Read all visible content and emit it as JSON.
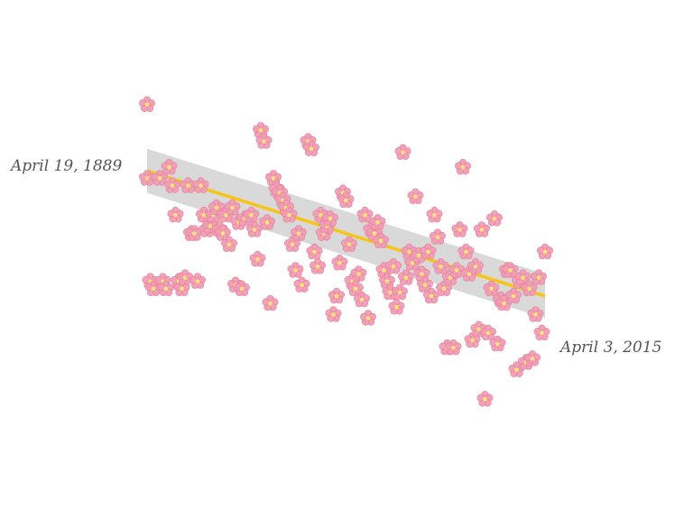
{
  "chart_data": {
    "type": "scatter",
    "title": "",
    "xlabel": "",
    "ylabel": "",
    "xlim": [
      1889,
      2015
    ],
    "ylim": [
      0,
      100
    ],
    "grid": false,
    "legend": "none",
    "marker": "cherry-blossom",
    "colors": {
      "petal": "#f29db4",
      "petal_stroke": "#e07f99",
      "center": "#ffe27a",
      "trend": "#f5c518",
      "band": "#cfcfcf"
    },
    "annotations": [
      {
        "text": "April 19, 1889",
        "x": 1889
      },
      {
        "text": "April 3, 2015",
        "x": 2015
      }
    ],
    "trend": {
      "start": 72,
      "end": 38,
      "band_halfwidth": 6
    },
    "points": [
      [
        1889,
        90
      ],
      [
        1889,
        70
      ],
      [
        1890,
        42
      ],
      [
        1891,
        40
      ],
      [
        1893,
        70
      ],
      [
        1894,
        42
      ],
      [
        1895,
        40
      ],
      [
        1896,
        73
      ],
      [
        1897,
        68
      ],
      [
        1898,
        60
      ],
      [
        1899,
        42
      ],
      [
        1900,
        40
      ],
      [
        1901,
        43
      ],
      [
        1902,
        68
      ],
      [
        1903,
        55
      ],
      [
        1904,
        55
      ],
      [
        1905,
        42
      ],
      [
        1906,
        68
      ],
      [
        1907,
        60
      ],
      [
        1908,
        56
      ],
      [
        1909,
        57
      ],
      [
        1910,
        60
      ],
      [
        1911,
        62
      ],
      [
        1912,
        56
      ],
      [
        1913,
        55
      ],
      [
        1914,
        60
      ],
      [
        1915,
        52
      ],
      [
        1916,
        62
      ],
      [
        1917,
        41
      ],
      [
        1918,
        58
      ],
      [
        1919,
        40
      ],
      [
        1920,
        59
      ],
      [
        1922,
        60
      ],
      [
        1923,
        56
      ],
      [
        1924,
        48
      ],
      [
        1925,
        83
      ],
      [
        1926,
        80
      ],
      [
        1927,
        58
      ],
      [
        1928,
        36
      ],
      [
        1929,
        70
      ],
      [
        1930,
        67
      ],
      [
        1931,
        66
      ],
      [
        1932,
        64
      ],
      [
        1933,
        62
      ],
      [
        1934,
        60
      ],
      [
        1935,
        52
      ],
      [
        1936,
        45
      ],
      [
        1937,
        55
      ],
      [
        1938,
        41
      ],
      [
        1940,
        80
      ],
      [
        1941,
        78
      ],
      [
        1942,
        50
      ],
      [
        1943,
        46
      ],
      [
        1944,
        60
      ],
      [
        1945,
        55
      ],
      [
        1946,
        57
      ],
      [
        1947,
        59
      ],
      [
        1948,
        33
      ],
      [
        1949,
        38
      ],
      [
        1950,
        47
      ],
      [
        1951,
        66
      ],
      [
        1952,
        64
      ],
      [
        1953,
        52
      ],
      [
        1954,
        42
      ],
      [
        1955,
        40
      ],
      [
        1956,
        44
      ],
      [
        1957,
        37
      ],
      [
        1958,
        60
      ],
      [
        1959,
        32
      ],
      [
        1960,
        56
      ],
      [
        1961,
        55
      ],
      [
        1962,
        58
      ],
      [
        1963,
        53
      ],
      [
        1964,
        45
      ],
      [
        1965,
        42
      ],
      [
        1966,
        39
      ],
      [
        1967,
        46
      ],
      [
        1968,
        35
      ],
      [
        1969,
        39
      ],
      [
        1970,
        77
      ],
      [
        1971,
        43
      ],
      [
        1972,
        50
      ],
      [
        1973,
        47
      ],
      [
        1974,
        65
      ],
      [
        1975,
        49
      ],
      [
        1976,
        44
      ],
      [
        1977,
        41
      ],
      [
        1978,
        50
      ],
      [
        1979,
        38
      ],
      [
        1980,
        60
      ],
      [
        1981,
        54
      ],
      [
        1982,
        46
      ],
      [
        1983,
        40
      ],
      [
        1984,
        24
      ],
      [
        1985,
        43
      ],
      [
        1986,
        24
      ],
      [
        1987,
        45
      ],
      [
        1988,
        56
      ],
      [
        1989,
        73
      ],
      [
        1990,
        50
      ],
      [
        1991,
        44
      ],
      [
        1992,
        26
      ],
      [
        1993,
        46
      ],
      [
        1994,
        29
      ],
      [
        1995,
        56
      ],
      [
        1996,
        10
      ],
      [
        1997,
        28
      ],
      [
        1998,
        40
      ],
      [
        1999,
        59
      ],
      [
        2000,
        25
      ],
      [
        2001,
        37
      ],
      [
        2002,
        36
      ],
      [
        2003,
        45
      ],
      [
        2004,
        45
      ],
      [
        2005,
        38
      ],
      [
        2006,
        18
      ],
      [
        2007,
        42
      ],
      [
        2008,
        43
      ],
      [
        2009,
        20
      ],
      [
        2010,
        40
      ],
      [
        2011,
        21
      ],
      [
        2012,
        33
      ],
      [
        2013,
        43
      ],
      [
        2014,
        28
      ],
      [
        2015,
        50
      ]
    ]
  }
}
